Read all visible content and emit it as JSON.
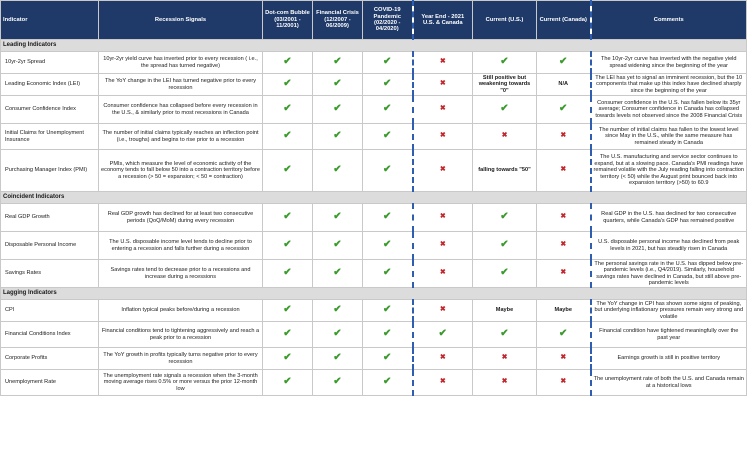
{
  "headers": {
    "indicator": "Indicator",
    "signals": "Recession Signals",
    "dotcom": "Dot-com Bubble (03/2001 - 11/2001)",
    "financial": "Financial Crisis (12/2007 - 06/2009)",
    "covid": "COVID-19 Pandemic (02/2020 - 04/2020)",
    "yearend": "Year End - 2021 U.S. & Canada",
    "current_us": "Current (U.S.)",
    "current_ca": "Current (Canada)",
    "comments": "Comments"
  },
  "sections": [
    {
      "title": "Leading Indicators",
      "rows": [
        {
          "indicator": "10yr-2yr Spread",
          "signal": "10yr-2yr yield curve has inverted prior to every recession ( i.e., the spread has turned negative)",
          "cells": [
            "check",
            "check",
            "check",
            "x",
            "check",
            "check"
          ],
          "comment": "The 10yr-2yr curve has inverted with the negative yield spread widening since the beginning of the year",
          "h": "r1"
        },
        {
          "indicator": "Leading Economic Index (LEI)",
          "signal": "The YoY change in the LEI has turned negative prior to every recession",
          "cells": [
            "check",
            "check",
            "check",
            "x",
            "Still positive but weakening towards \"0\"",
            "N/A"
          ],
          "comment": "The LEI has yet to signal an imminent recession, but the 10 components that make up this index have declined sharply since the beginning of the year",
          "h": "r1"
        },
        {
          "indicator": "Consumer Confidence Index",
          "signal": "Consumer confidence has collapsed before every recession in the U.S., & similarly prior to most recessions in Canada",
          "cells": [
            "check",
            "check",
            "check",
            "x",
            "check",
            "check"
          ],
          "comment": "Consumer confidence in the U.S. has fallen below its 35yr average; Consumer confidence in Canada has collapsed towards levels not observed since the 2008 Financial Crisis",
          "h": "r2"
        },
        {
          "indicator": "Initial Claims for Unemployment Insurance",
          "signal": "The number of initial claims typically reaches an inflection point (i.e., troughs) and begins to rise prior to a recession",
          "cells": [
            "check",
            "check",
            "check",
            "x",
            "x",
            "x"
          ],
          "comment": "The number of initial claims has fallen to the lowest level since May in the U.S., while the same measure has remained steady in Canada",
          "h": "r4"
        },
        {
          "indicator": "Purchasing Manager Index (PMI)",
          "signal": "PMIs, which measure the level of economic activity of the economy tends to fall below 50 into a contraction territory before a recession (> 50 = expansion; < 50 = contraction)",
          "cells": [
            "check",
            "check",
            "check",
            "x",
            "falling towards \"50\"",
            "x"
          ],
          "comment": "The U.S. manufacturing and service sector continues to expand, but at a slowing pace. Canada's PMI readings have remained volatile with the July reading falling into contraction territory (< 50) while the August print bounced back into expansion territory (>50) to 60.9",
          "h": "r3"
        }
      ]
    },
    {
      "title": "Coincident Indicators",
      "rows": [
        {
          "indicator": "Real GDP Growth",
          "signal": "Real GDP growth has declined for at least two consecutive periods (QoQ/MoM) during every recession",
          "cells": [
            "check",
            "check",
            "check",
            "x",
            "check",
            "x"
          ],
          "comment": "Real GDP in the U.S. has declined for two consecutive quarters, while Canada's GDP has remained positive",
          "h": "r2"
        },
        {
          "indicator": "Disposable Personal Income",
          "signal": "The U.S. disposable income level tends to decline prior to entering a recession and falls further during a recession",
          "cells": [
            "check",
            "check",
            "check",
            "x",
            "check",
            "x"
          ],
          "comment": "U.S. disposable personal income has declined from peak levels in 2021, but has steadily risen in Canada",
          "h": "r2"
        },
        {
          "indicator": "Savings Rates",
          "signal": "Savings rates tend to decrease prior to a recessions and increase during a recessions",
          "cells": [
            "check",
            "check",
            "check",
            "x",
            "check",
            "x"
          ],
          "comment": "The personal savings rate in the U.S. has dipped below pre-pandemic levels (i.e., Q4/2019). Similarly, household savings rates have declined in Canada, but still above pre-pandemic levels",
          "h": "r2"
        }
      ]
    },
    {
      "title": "Lagging Indicators",
      "rows": [
        {
          "indicator": "CPI",
          "signal": "Inflation typical peaks before/during a recession",
          "cells": [
            "check",
            "check",
            "check",
            "x",
            "Maybe",
            "Maybe"
          ],
          "comment": "The YoY change in CPI has shown some signs of peaking, but underlying inflationary pressures remain very strong and volatile",
          "h": "r1"
        },
        {
          "indicator": "Financial Conditions Index",
          "signal": "Financial conditions tend to tightening aggressively and reach a peak prior to a recession",
          "cells": [
            "check",
            "check",
            "check",
            "check",
            "check",
            "check"
          ],
          "comment": "Financial condition have tightened meaningfully over the past year",
          "h": "r4"
        },
        {
          "indicator": "Corporate Profits",
          "signal": "The YoY growth in profits typically turns negative prior to every recession",
          "cells": [
            "check",
            "check",
            "check",
            "x",
            "x",
            "x"
          ],
          "comment": "Earnings growth is still in positive territory",
          "h": "r1"
        },
        {
          "indicator": "Unemployment Rate",
          "signal": "The unemployment rate signals a recession when the 3-month moving average rises 0.5% or more versus the prior 12-month low",
          "cells": [
            "check",
            "check",
            "check",
            "x",
            "x",
            "x"
          ],
          "comment": "The unemployment rate of both the U.S. and Canada remain at a historical lows",
          "h": "r4"
        }
      ]
    }
  ],
  "symbols": {
    "check": "✔",
    "x": "✖"
  },
  "colors": {
    "header_bg": "#1f3a68",
    "check": "#3a9b2c",
    "cross": "#c0282d",
    "dash_border": "#2f5db0",
    "section_bg": "#dcdcdc"
  }
}
